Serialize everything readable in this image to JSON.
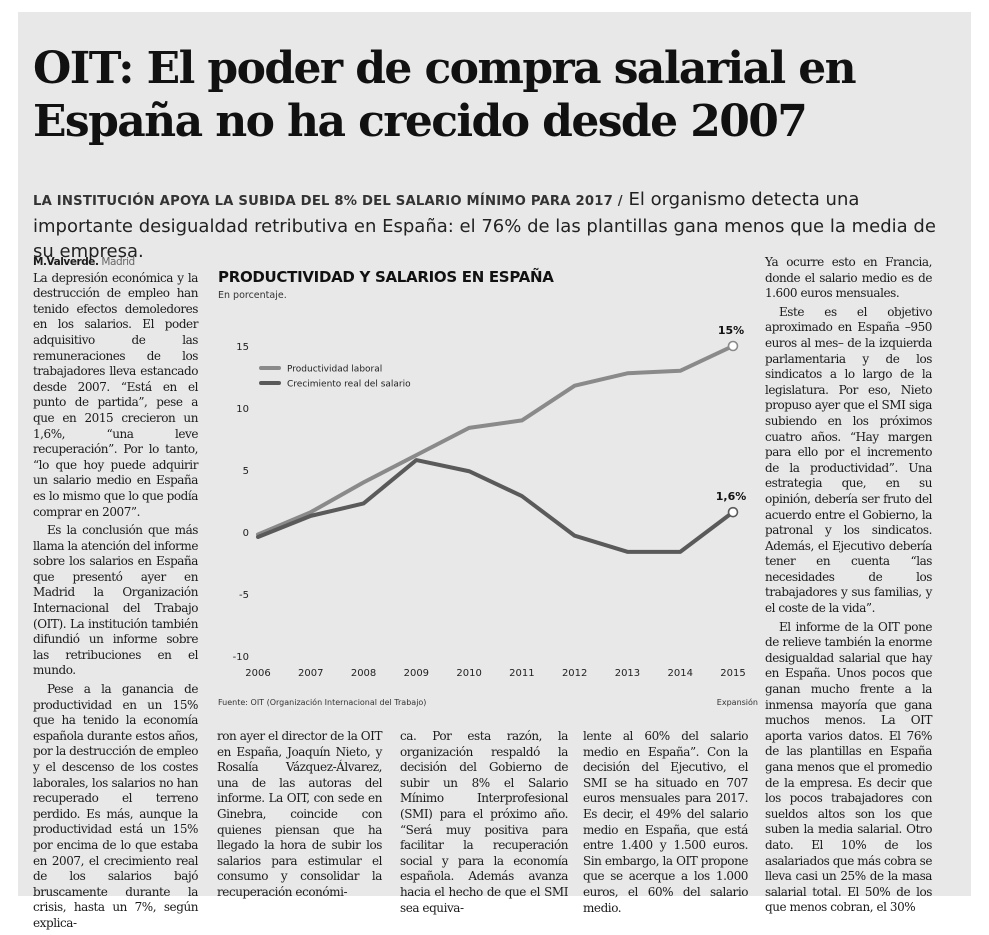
{
  "headline": "OIT: El poder de compra salarial en España no ha crecido desde 2007",
  "deck": {
    "kicker": "LA INSTITUCIÓN APOYA LA SUBIDA DEL 8% DEL SALARIO MÍNIMO PARA 2017 /",
    "text": " El organismo detecta una importante desigualdad retributiva en España: el 76% de las plantillas gana menos que la media de su empresa."
  },
  "byline": {
    "author": "M.Valverde.",
    "location": " Madrid"
  },
  "column1": [
    "La depresión económica y la destrucción de empleo han tenido efectos demoledores en los salarios. El poder adquisitivo de las remuneraciones de los trabajadores lleva estancado desde 2007. “Está en el punto de partida”, pese a que en 2015 crecieron un 1,6%, “una leve recuperación”. Por lo tanto, “lo que hoy puede adquirir un salario medio en España es lo mismo que lo que podía comprar en 2007”.",
    "Es la conclusión que más llama la atención del informe sobre los salarios en España que presentó ayer en Madrid la Organización Internacional del Trabajo (OIT). La institución también difundió un informe sobre las retribuciones en el mundo.",
    "Pese a la ganancia de productividad en un 15% que ha tenido la economía española durante estos años, por la destrucción de empleo y el descenso de los costes laborales, los salarios no han recuperado el terreno perdido. Es más, aunque la productividad está un 15% por encima de lo que estaba en 2007, el crecimiento real de los salarios bajó bruscamente durante la crisis, hasta un 7%, según explica-"
  ],
  "column2": "ron ayer el director de la OIT en España, Joaquín Nieto, y Rosalía Vázquez-Álvarez, una de las autoras del informe. La OIT, con sede en Ginebra, coincide con quienes piensan que ha llegado la hora de subir los salarios para estimular el consumo y consolidar la recuperación económi-",
  "column3": "ca. Por esta razón, la organización respaldó la decisión del Gobierno de subir un 8% el Salario Mínimo Interprofesional (SMI) para el próximo año. “Será muy positiva para facilitar la recuperación social y para la economía española. Además avanza hacia el hecho de que el SMI sea equiva-",
  "column4": "lente al 60% del salario medio en España”. Con la decisión del Ejecutivo, el SMI se ha situado en 707 euros mensuales para 2017. Es decir, el 49% del salario medio en España, que está entre 1.400 y 1.500 euros. Sin embargo, la OIT propone que se acerque a los 1.000 euros, el 60% del salario medio.",
  "column5": [
    "Ya ocurre esto en Francia, donde el salario medio es de 1.600 euros mensuales.",
    "Este es el objetivo aproximado en España –950 euros al mes– de la izquierda parlamentaria y de los sindicatos a lo largo de la legislatura. Por eso, Nieto propuso ayer que el SMI siga subiendo en los próximos cuatro años. “Hay margen para ello por el incremento de la productividad”. Una estrategia que, en su opinión, debería ser fruto del acuerdo entre el Gobierno, la patronal y los sindicatos. Además, el Ejecutivo debería tener en cuenta “las necesidades de los trabajadores y sus familias, y el coste de la vida”.",
    "El informe de la OIT pone de relieve también la enorme desigualdad salarial que hay en España. Unos pocos que ganan mucho frente a la inmensa mayoría que gana muchos menos. La OIT aporta varios datos. El 76% de las plantillas en España gana menos que el promedio de la empresa. Es decir que los pocos trabajadores con sueldos altos son los que suben la media salarial. Otro dato. El 10% de los asalariados que más cobra se lleva casi un 25% de la masa salarial total. El 50% de los que menos cobran, el 30%"
  ],
  "chart": {
    "source": "Fuente: OIT (Organización Internacional del Trabajo)",
    "credit": "Expansión"
  },
  "chart_data": {
    "type": "line",
    "title": "PRODUCTIVIDAD Y SALARIOS EN ESPAÑA",
    "subtitle": "En porcentaje.",
    "x": [
      "2006",
      "2007",
      "2008",
      "2009",
      "2010",
      "2011",
      "2012",
      "2013",
      "2014",
      "2015"
    ],
    "yticks": [
      15,
      10,
      5,
      0,
      -5,
      -10
    ],
    "ylim": [
      -10,
      15
    ],
    "grid": false,
    "legend": "top-left",
    "series": [
      {
        "name": "Productividad laboral",
        "color": "#8a8a8a",
        "values": [
          -0.2,
          1.6,
          4.0,
          6.2,
          8.4,
          9.0,
          11.8,
          12.8,
          13.0,
          15.0
        ],
        "end_label": "15%"
      },
      {
        "name": "Crecimiento real del salario",
        "color": "#5a5a5a",
        "values": [
          -0.4,
          1.3,
          2.3,
          5.8,
          4.9,
          2.9,
          -0.3,
          -1.6,
          -1.6,
          1.6
        ],
        "end_label": "1,6%"
      }
    ]
  }
}
